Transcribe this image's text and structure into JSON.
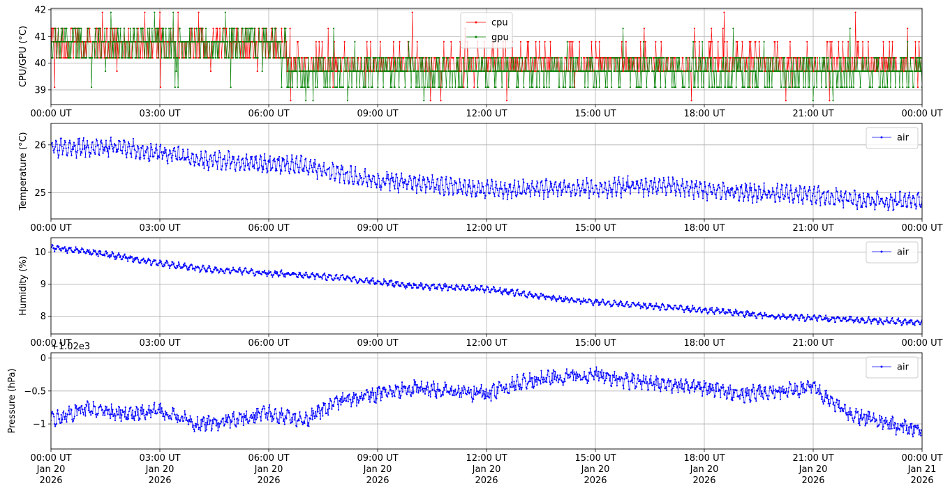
{
  "x_tick_labels": [
    "00:00 UT",
    "03:00 UT",
    "06:00 UT",
    "09:00 UT",
    "12:00 UT",
    "15:00 UT",
    "18:00 UT",
    "21:00 UT",
    "00:00 UT"
  ],
  "x_date_lines": [
    [
      "Jan 20",
      "2026"
    ],
    [
      "Jan 20",
      "2026"
    ],
    [
      "Jan 20",
      "2026"
    ],
    [
      "Jan 20",
      "2026"
    ],
    [
      "Jan 20",
      "2026"
    ],
    [
      "Jan 20",
      "2026"
    ],
    [
      "Jan 20",
      "2026"
    ],
    [
      "Jan 20",
      "2026"
    ],
    [
      "Jan 21",
      "2026"
    ]
  ],
  "chart_data": [
    {
      "type": "line",
      "ylabel": "CPU/GPU (°C)",
      "x_range": [
        "2026-01-20 00:00",
        "2026-01-21 00:00"
      ],
      "ylim": [
        38.45,
        42.05
      ],
      "y_ticks": [
        39,
        40,
        41,
        42
      ],
      "grid": true,
      "legend_position": "top-center",
      "series": [
        {
          "name": "cpu",
          "color": "#ff0000",
          "approx_levels": [
            {
              "until": "06:30",
              "mean": 40.7
            },
            {
              "until": "24:00",
              "mean": 40.0
            }
          ],
          "discrete_values": [
            38.6,
            39.1,
            39.7,
            40.2,
            40.8,
            41.3,
            41.9
          ]
        },
        {
          "name": "gpu",
          "color": "#008000",
          "approx_levels": [
            {
              "until": "06:30",
              "mean": 40.7
            },
            {
              "until": "24:00",
              "mean": 39.7
            }
          ],
          "discrete_values": [
            38.6,
            39.1,
            39.7,
            40.2,
            40.8,
            41.3,
            41.9
          ]
        }
      ]
    },
    {
      "type": "line",
      "ylabel": "Temperature (°C)",
      "x_range": [
        "2026-01-20 00:00",
        "2026-01-21 00:00"
      ],
      "ylim": [
        24.45,
        26.45
      ],
      "y_ticks": [
        25,
        26
      ],
      "grid": true,
      "legend_position": "top-right",
      "series": [
        {
          "name": "air",
          "color": "#0000ff",
          "trend": [
            [
              "00:00",
              25.95
            ],
            [
              "02:00",
              25.95
            ],
            [
              "04:00",
              25.7
            ],
            [
              "06:00",
              25.6
            ],
            [
              "07:00",
              25.55
            ],
            [
              "09:00",
              25.25
            ],
            [
              "10:00",
              25.2
            ],
            [
              "12:00",
              25.05
            ],
            [
              "15:00",
              25.1
            ],
            [
              "17:00",
              25.15
            ],
            [
              "18:00",
              25.05
            ],
            [
              "21:00",
              24.95
            ],
            [
              "23:00",
              24.8
            ],
            [
              "24:00",
              24.85
            ]
          ]
        }
      ]
    },
    {
      "type": "line",
      "ylabel": "Humidity (%)",
      "x_range": [
        "2026-01-20 00:00",
        "2026-01-21 00:00"
      ],
      "ylim": [
        7.45,
        10.45
      ],
      "y_ticks": [
        8,
        9,
        10
      ],
      "grid": true,
      "legend_position": "top-right",
      "series": [
        {
          "name": "air",
          "color": "#0000ff",
          "trend": [
            [
              "00:00",
              10.15
            ],
            [
              "02:00",
              9.85
            ],
            [
              "03:00",
              9.65
            ],
            [
              "04:00",
              9.5
            ],
            [
              "06:00",
              9.35
            ],
            [
              "08:00",
              9.2
            ],
            [
              "10:00",
              8.95
            ],
            [
              "12:00",
              8.85
            ],
            [
              "14:00",
              8.55
            ],
            [
              "16:00",
              8.35
            ],
            [
              "18:00",
              8.2
            ],
            [
              "20:00",
              8.0
            ],
            [
              "22:00",
              7.9
            ],
            [
              "24:00",
              7.8
            ]
          ]
        }
      ]
    },
    {
      "type": "line",
      "ylabel": "Pressure (hPa)",
      "offset_label": "+1.02e3",
      "x_range": [
        "2026-01-20 00:00",
        "2026-01-21 00:00"
      ],
      "ylim": [
        -1.38,
        0.08
      ],
      "y_ticks": [
        -1.0,
        -0.5,
        0.0
      ],
      "grid": true,
      "legend_position": "top-right",
      "series": [
        {
          "name": "air",
          "color": "#0000ff",
          "trend": [
            [
              "00:00",
              -0.95
            ],
            [
              "01:00",
              -0.75
            ],
            [
              "02:00",
              -0.85
            ],
            [
              "03:00",
              -0.8
            ],
            [
              "04:00",
              -1.0
            ],
            [
              "05:00",
              -0.95
            ],
            [
              "06:00",
              -0.85
            ],
            [
              "07:00",
              -0.95
            ],
            [
              "08:00",
              -0.65
            ],
            [
              "09:00",
              -0.55
            ],
            [
              "10:00",
              -0.45
            ],
            [
              "11:00",
              -0.5
            ],
            [
              "12:00",
              -0.55
            ],
            [
              "13:00",
              -0.35
            ],
            [
              "14:00",
              -0.3
            ],
            [
              "15:00",
              -0.25
            ],
            [
              "16:00",
              -0.35
            ],
            [
              "18:00",
              -0.45
            ],
            [
              "19:00",
              -0.55
            ],
            [
              "20:00",
              -0.5
            ],
            [
              "21:00",
              -0.45
            ],
            [
              "21:30",
              -0.65
            ],
            [
              "22:00",
              -0.85
            ],
            [
              "23:00",
              -1.0
            ],
            [
              "24:00",
              -1.1
            ]
          ]
        }
      ]
    }
  ]
}
